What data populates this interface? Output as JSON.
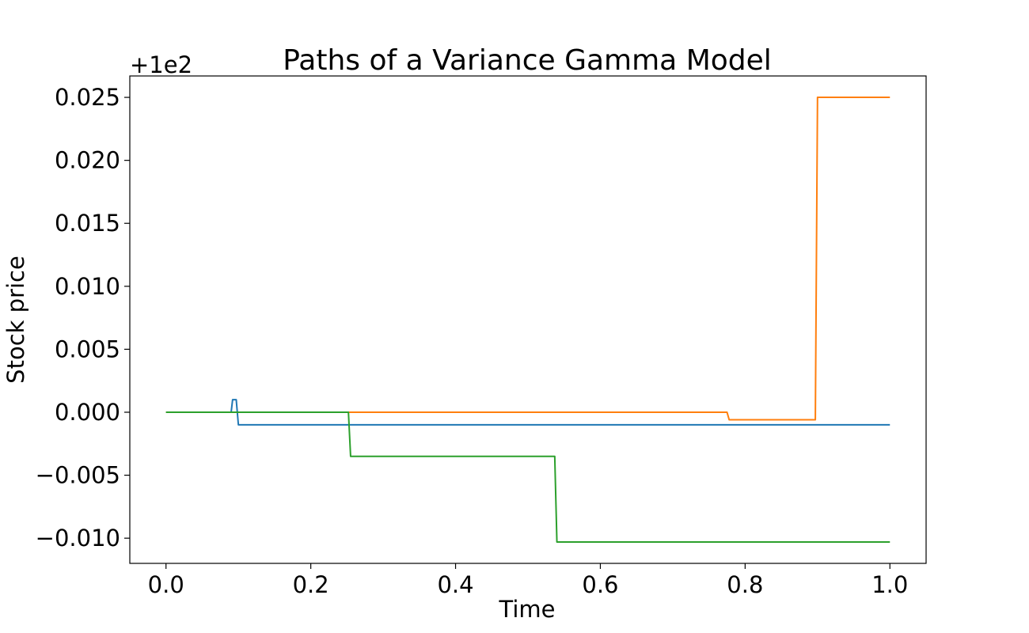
{
  "chart_data": {
    "type": "line",
    "title": "Paths of a Variance Gamma Model",
    "xlabel": "Time",
    "ylabel": "Stock price",
    "y_offset_label": "+1e2",
    "y_offset": 100,
    "xlim": [
      -0.05,
      1.05
    ],
    "ylim": [
      -0.012,
      0.0267
    ],
    "x_ticks": [
      0.0,
      0.2,
      0.4,
      0.6,
      0.8,
      1.0
    ],
    "x_tick_labels": [
      "0.0",
      "0.2",
      "0.4",
      "0.6",
      "0.8",
      "1.0"
    ],
    "y_ticks": [
      -0.01,
      -0.005,
      0.0,
      0.005,
      0.01,
      0.015,
      0.02,
      0.025
    ],
    "y_tick_labels": [
      "−0.010",
      "−0.005",
      "0.000",
      "0.005",
      "0.010",
      "0.015",
      "0.020",
      "0.025"
    ],
    "grid": false,
    "legend": "none",
    "series": [
      {
        "color": "#1f77b4",
        "x": [
          0.0,
          0.09,
          0.092,
          0.097,
          0.1,
          1.0
        ],
        "y": [
          0.0,
          0.0,
          0.001,
          0.001,
          -0.001,
          -0.001
        ]
      },
      {
        "color": "#ff7f0e",
        "x": [
          0.0,
          0.775,
          0.778,
          0.897,
          0.9,
          1.0
        ],
        "y": [
          0.0,
          0.0,
          -0.0006,
          -0.0006,
          0.025,
          0.025
        ]
      },
      {
        "color": "#2ca02c",
        "x": [
          0.0,
          0.252,
          0.255,
          0.537,
          0.54,
          1.0
        ],
        "y": [
          0.0,
          0.0,
          -0.0035,
          -0.0035,
          -0.0103,
          -0.0103
        ]
      }
    ]
  }
}
